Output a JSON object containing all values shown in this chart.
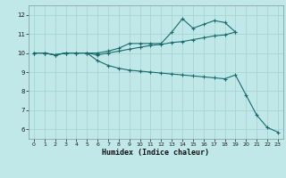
{
  "xlabel": "Humidex (Indice chaleur)",
  "bg_color": "#c0e8e8",
  "grid_color": "#a8d4d4",
  "line_color": "#1a6b6b",
  "xlim": [
    -0.5,
    23.5
  ],
  "ylim": [
    5.5,
    12.5
  ],
  "xticks": [
    0,
    1,
    2,
    3,
    4,
    5,
    6,
    7,
    8,
    9,
    10,
    11,
    12,
    13,
    14,
    15,
    16,
    17,
    18,
    19,
    20,
    21,
    22,
    23
  ],
  "yticks": [
    6,
    7,
    8,
    9,
    10,
    11,
    12
  ],
  "series1_x": [
    0,
    1,
    2,
    3,
    4,
    5,
    6,
    7,
    8,
    9,
    10,
    11,
    12,
    13,
    14,
    15,
    16,
    17,
    18,
    19
  ],
  "series1_y": [
    10.0,
    10.0,
    9.9,
    10.0,
    10.0,
    10.0,
    10.0,
    10.1,
    10.25,
    10.5,
    10.5,
    10.5,
    10.5,
    11.1,
    11.8,
    11.3,
    11.5,
    11.7,
    11.6,
    11.1
  ],
  "series2_x": [
    0,
    1,
    2,
    3,
    4,
    5,
    6,
    7,
    8,
    9,
    10,
    11,
    12,
    13,
    14,
    15,
    16,
    17,
    18,
    19
  ],
  "series2_y": [
    10.0,
    10.0,
    9.9,
    10.0,
    10.0,
    10.0,
    9.9,
    10.0,
    10.1,
    10.2,
    10.3,
    10.4,
    10.45,
    10.55,
    10.6,
    10.7,
    10.8,
    10.9,
    10.95,
    11.1
  ],
  "series3_x": [
    0,
    1,
    2,
    3,
    4,
    5,
    6,
    7,
    8,
    9,
    10,
    11,
    12,
    13,
    14,
    15,
    16,
    17,
    18,
    19,
    20,
    21,
    22,
    23
  ],
  "series3_y": [
    10.0,
    10.0,
    9.9,
    10.0,
    10.0,
    10.0,
    9.6,
    9.35,
    9.2,
    9.1,
    9.05,
    9.0,
    8.95,
    8.9,
    8.85,
    8.8,
    8.75,
    8.7,
    8.65,
    8.85,
    7.8,
    6.75,
    6.1,
    5.85
  ]
}
